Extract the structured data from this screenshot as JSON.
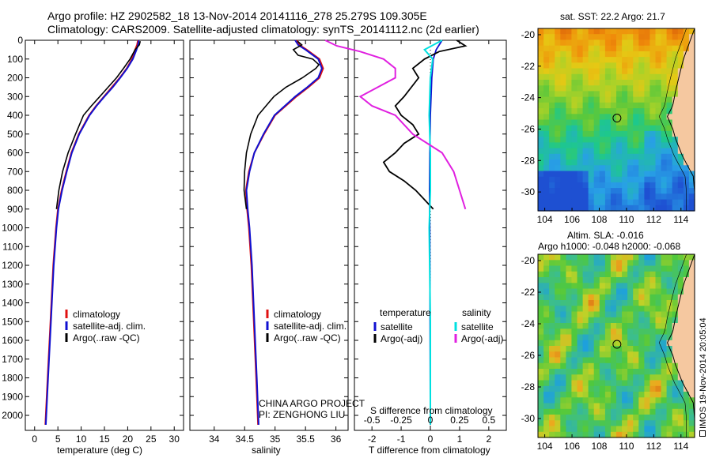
{
  "header": {
    "line1": "Argo profile: HZ 2902582_18 13-Nov-2014 20141116_278 25.279S 109.305E",
    "line2": "Climatology: CARS2009. Satellite-adjusted climatology: synTS_20141112.nc (2d earlier)"
  },
  "side_stamp": "IMOS 19-Nov-2014 20:05:04",
  "project": {
    "line1": "CHINA ARGO PROJECT",
    "line2": "PI: ZENGHONG LIU"
  },
  "colors": {
    "climatology": "#e01010",
    "satellite": "#1010d0",
    "argo": "#000000",
    "sat_s": "#00e0e0",
    "argo_s": "#e020e0"
  },
  "chart_data": [
    {
      "type": "line",
      "id": "temperature",
      "xlabel": "temperature (deg C)",
      "ylabel": "",
      "xlim": [
        -2,
        32
      ],
      "ylim": [
        2080,
        0
      ],
      "x_ticks": [
        0,
        5,
        10,
        15,
        20,
        25,
        30
      ],
      "y_ticks": [
        0,
        100,
        200,
        300,
        400,
        500,
        600,
        700,
        800,
        900,
        1000,
        1100,
        1200,
        1300,
        1400,
        1500,
        1600,
        1700,
        1800,
        1900,
        2000
      ],
      "legend": [
        "climatology",
        "satellite-adj. clim.",
        "Argo(..raw -QC)"
      ],
      "legend_position": "lower-left",
      "series": [
        {
          "name": "climatology",
          "depth": [
            0,
            25,
            50,
            100,
            150,
            200,
            250,
            300,
            350,
            400,
            500,
            600,
            700,
            800,
            900,
            1000,
            1200,
            1500,
            1800,
            2050
          ],
          "values": [
            22.2,
            22.0,
            21.6,
            20.9,
            19.8,
            18.3,
            16.6,
            14.9,
            13.2,
            11.7,
            9.5,
            7.9,
            6.8,
            5.8,
            5.0,
            4.6,
            4.0,
            3.4,
            2.8,
            2.3
          ]
        },
        {
          "name": "satellite-adj. clim.",
          "depth": [
            0,
            25,
            50,
            100,
            150,
            200,
            250,
            300,
            350,
            400,
            500,
            600,
            700,
            800,
            900,
            1000,
            1200,
            1500,
            1800,
            2050
          ],
          "values": [
            22.4,
            22.2,
            21.9,
            21.1,
            19.9,
            18.4,
            16.8,
            15.0,
            13.3,
            11.8,
            9.6,
            8.0,
            6.9,
            5.9,
            5.1,
            4.7,
            4.1,
            3.5,
            2.9,
            2.4
          ]
        },
        {
          "name": "Argo(..raw -QC)",
          "depth": [
            5,
            25,
            50,
            100,
            150,
            200,
            250,
            300,
            350,
            400,
            500,
            600,
            700,
            800,
            900
          ],
          "values": [
            22.7,
            22.5,
            21.6,
            20.5,
            19.1,
            17.6,
            15.8,
            14.0,
            12.2,
            10.5,
            8.8,
            7.2,
            6.0,
            5.2,
            4.7
          ]
        }
      ]
    },
    {
      "type": "line",
      "id": "salinity",
      "xlabel": "salinity",
      "ylabel": "",
      "xlim": [
        33.6,
        36.2
      ],
      "ylim": [
        2080,
        0
      ],
      "x_ticks": [
        34,
        34.5,
        35,
        35.5,
        36
      ],
      "legend": [
        "climatology",
        "satellite-adj. clim.",
        "Argo(..raw -QC)"
      ],
      "legend_position": "lower-left",
      "series": [
        {
          "name": "climatology",
          "depth": [
            0,
            25,
            50,
            100,
            150,
            200,
            250,
            300,
            400,
            500,
            600,
            700,
            800,
            900,
            1000,
            1200,
            1500,
            1800,
            2050
          ],
          "values": [
            35.36,
            35.4,
            35.52,
            35.73,
            35.79,
            35.73,
            35.55,
            35.35,
            35.0,
            34.82,
            34.66,
            34.57,
            34.52,
            34.54,
            34.57,
            34.61,
            34.65,
            34.69,
            34.72
          ]
        },
        {
          "name": "satellite-adj. clim.",
          "depth": [
            0,
            25,
            50,
            100,
            150,
            200,
            250,
            300,
            400,
            500,
            600,
            700,
            800,
            900,
            1000,
            1200,
            1500,
            1800,
            2050
          ],
          "values": [
            35.33,
            35.38,
            35.5,
            35.71,
            35.77,
            35.71,
            35.53,
            35.33,
            34.99,
            34.81,
            34.66,
            34.58,
            34.53,
            34.55,
            34.58,
            34.62,
            34.66,
            34.7,
            34.73
          ]
        },
        {
          "name": "Argo(..raw -QC)",
          "depth": [
            5,
            25,
            50,
            80,
            100,
            130,
            150,
            200,
            250,
            300,
            350,
            400,
            500,
            600,
            700,
            800,
            900
          ],
          "values": [
            35.37,
            35.44,
            35.3,
            35.38,
            35.62,
            35.72,
            35.67,
            35.45,
            35.18,
            34.98,
            34.85,
            34.72,
            34.6,
            34.53,
            34.5,
            34.49,
            34.53
          ]
        }
      ]
    },
    {
      "type": "line",
      "id": "difference",
      "xlabel": "T difference from climatology",
      "xlabel_top": "S difference from climatology",
      "xlim": [
        -2.6,
        2.6
      ],
      "ylim": [
        2080,
        0
      ],
      "x_ticks": [
        -2,
        -1,
        0,
        1,
        2
      ],
      "s_ticks": [
        -0.5,
        -0.25,
        0,
        0.25,
        0.5
      ],
      "legend_left_title": "temperature",
      "legend_right_title": "salinity",
      "legend_left": [
        "satellite",
        "Argo(-adj)"
      ],
      "legend_right": [
        "satellite",
        "Argo(-adj)"
      ],
      "series": [
        {
          "name": "T satellite",
          "depth": [
            0,
            50,
            100,
            200,
            400,
            600,
            800,
            1000,
            1500,
            2050
          ],
          "values": [
            0.4,
            0.2,
            0.1,
            0.05,
            0.0,
            -0.02,
            -0.03,
            -0.02,
            -0.01,
            0.0
          ]
        },
        {
          "name": "T Argo(-adj)",
          "depth": [
            0,
            30,
            60,
            100,
            150,
            200,
            300,
            350,
            400,
            450,
            500,
            550,
            600,
            650,
            700,
            750,
            800,
            850,
            900
          ],
          "values": [
            0.9,
            1.2,
            0.3,
            -0.2,
            -0.6,
            -0.4,
            -0.9,
            -1.2,
            -1.0,
            -0.6,
            -0.4,
            -0.9,
            -1.2,
            -1.6,
            -1.4,
            -0.9,
            -0.5,
            -0.2,
            0.1
          ]
        },
        {
          "name": "S satellite",
          "depth": [
            0,
            50,
            100,
            200,
            400,
            600,
            800,
            1000,
            1500,
            2050
          ],
          "values": [
            0.1,
            -0.05,
            0.02,
            0.0,
            -0.01,
            0.0,
            0.0,
            -0.01,
            0.0,
            0.0
          ]
        },
        {
          "name": "S Argo(-adj)",
          "depth": [
            0,
            30,
            60,
            100,
            150,
            200,
            300,
            350,
            400,
            500,
            600,
            700,
            800,
            900
          ],
          "values": [
            -0.9,
            -0.8,
            -0.6,
            -0.4,
            -0.3,
            -0.3,
            -0.6,
            -0.5,
            -0.3,
            -0.15,
            0.1,
            0.2,
            0.25,
            0.3
          ]
        }
      ]
    },
    {
      "type": "heatmap",
      "id": "sst_map",
      "title": "sat. SST: 22.2 Argo: 21.7",
      "x_ticks": [
        104,
        106,
        108,
        110,
        112,
        114
      ],
      "y_ticks": [
        -20,
        -22,
        -24,
        -26,
        -28,
        -30
      ],
      "xlim": [
        103.5,
        115
      ],
      "ylim": [
        -31.2,
        -19.6
      ],
      "argo_position": [
        109.3,
        -25.3
      ]
    },
    {
      "type": "heatmap",
      "id": "sla_map",
      "title": "Altim. SLA: -0.016",
      "subtitle": "Argo h1000: -0.048 h2000: -0.068",
      "x_ticks": [
        104,
        106,
        108,
        110,
        112,
        114
      ],
      "y_ticks": [
        -20,
        -22,
        -24,
        -26,
        -28,
        -30
      ],
      "xlim": [
        103.5,
        115
      ],
      "ylim": [
        -31.2,
        -19.6
      ],
      "argo_position": [
        109.3,
        -25.3
      ]
    }
  ]
}
